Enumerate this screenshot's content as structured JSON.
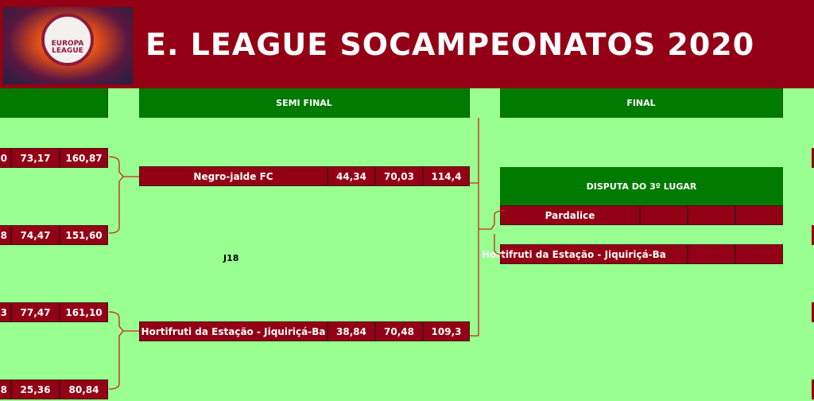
{
  "header": {
    "title": "E. LEAGUE SOCAMPEONATOS 2020",
    "logo_text": "EUROPA LEAGUE"
  },
  "columns": {
    "quarter": "",
    "semi": "SEMI FINAL",
    "final": "FINAL"
  },
  "quarter_rows": [
    {
      "a": "0",
      "b": "73,17",
      "total": "160,87"
    },
    {
      "a": "8",
      "b": "74,47",
      "total": "151,60"
    },
    {
      "a": "3",
      "b": "77,47",
      "total": "161,10"
    },
    {
      "a": "8",
      "b": "25,36",
      "total": "80,84"
    }
  ],
  "semi_rows": [
    {
      "team": "Negro-jalde FC",
      "a": "44,34",
      "b": "70,03",
      "total": "114,4"
    },
    {
      "team": "Hortifruti da Estação - Jiquiriçá-Ba",
      "a": "38,84",
      "b": "70,48",
      "total": "109,3"
    }
  ],
  "note": "J18",
  "third_place": {
    "title": "DISPUTA DO 3º LUGAR",
    "rows": [
      {
        "team": "Pardalice",
        "a": "",
        "b": "",
        "total": ""
      },
      {
        "team": "Hortifruti da Estação - Jiquiriçá-Ba",
        "b": "",
        "total": ""
      }
    ]
  },
  "colors": {
    "maroon": "#930015",
    "green": "#007A00",
    "background": "#98FF90",
    "bracket": "#D42020"
  }
}
